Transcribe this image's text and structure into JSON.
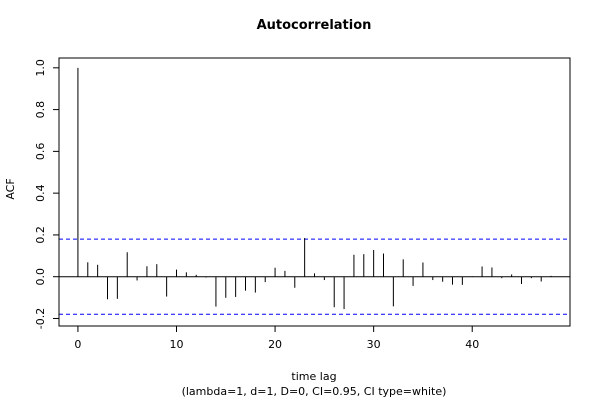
{
  "chart_data": {
    "type": "bar",
    "title": "Autocorrelation",
    "xlabel": "time lag",
    "subtitle": "(lambda=1, d=1, D=0, CI=0.95, CI type=white)",
    "ylabel": "ACF",
    "xlim": [
      -1.92,
      49.92
    ],
    "ylim": [
      -0.236,
      1.047
    ],
    "xticks": [
      "0",
      "10",
      "20",
      "30",
      "40"
    ],
    "yticks": [
      "-0.2",
      "0.0",
      "0.2",
      "0.4",
      "0.6",
      "0.8",
      "1.0"
    ],
    "lags": [
      0,
      1,
      2,
      3,
      4,
      5,
      6,
      7,
      8,
      9,
      10,
      11,
      12,
      13,
      14,
      15,
      16,
      17,
      18,
      19,
      20,
      21,
      22,
      23,
      24,
      25,
      26,
      27,
      28,
      29,
      30,
      31,
      32,
      33,
      34,
      35,
      36,
      37,
      38,
      39,
      40,
      41,
      42,
      43,
      44,
      45,
      46,
      47,
      48
    ],
    "values": [
      1.0,
      0.069,
      0.057,
      -0.108,
      -0.106,
      0.117,
      -0.018,
      0.05,
      0.06,
      -0.095,
      0.034,
      0.021,
      0.009,
      -0.004,
      -0.143,
      -0.101,
      -0.097,
      -0.067,
      -0.076,
      -0.026,
      0.043,
      0.028,
      -0.053,
      0.185,
      0.016,
      -0.016,
      -0.146,
      -0.155,
      0.105,
      0.108,
      0.128,
      0.111,
      -0.142,
      0.083,
      -0.044,
      0.068,
      -0.016,
      -0.024,
      -0.038,
      -0.039,
      0.002,
      0.049,
      0.044,
      -0.007,
      0.011,
      -0.035,
      -0.007,
      -0.023,
      0.004
    ],
    "ci": [
      0.18,
      -0.18
    ],
    "zero_line": 0,
    "colors": {
      "bars": "#000000",
      "ci": "#0000ff",
      "axes": "#000000"
    }
  }
}
